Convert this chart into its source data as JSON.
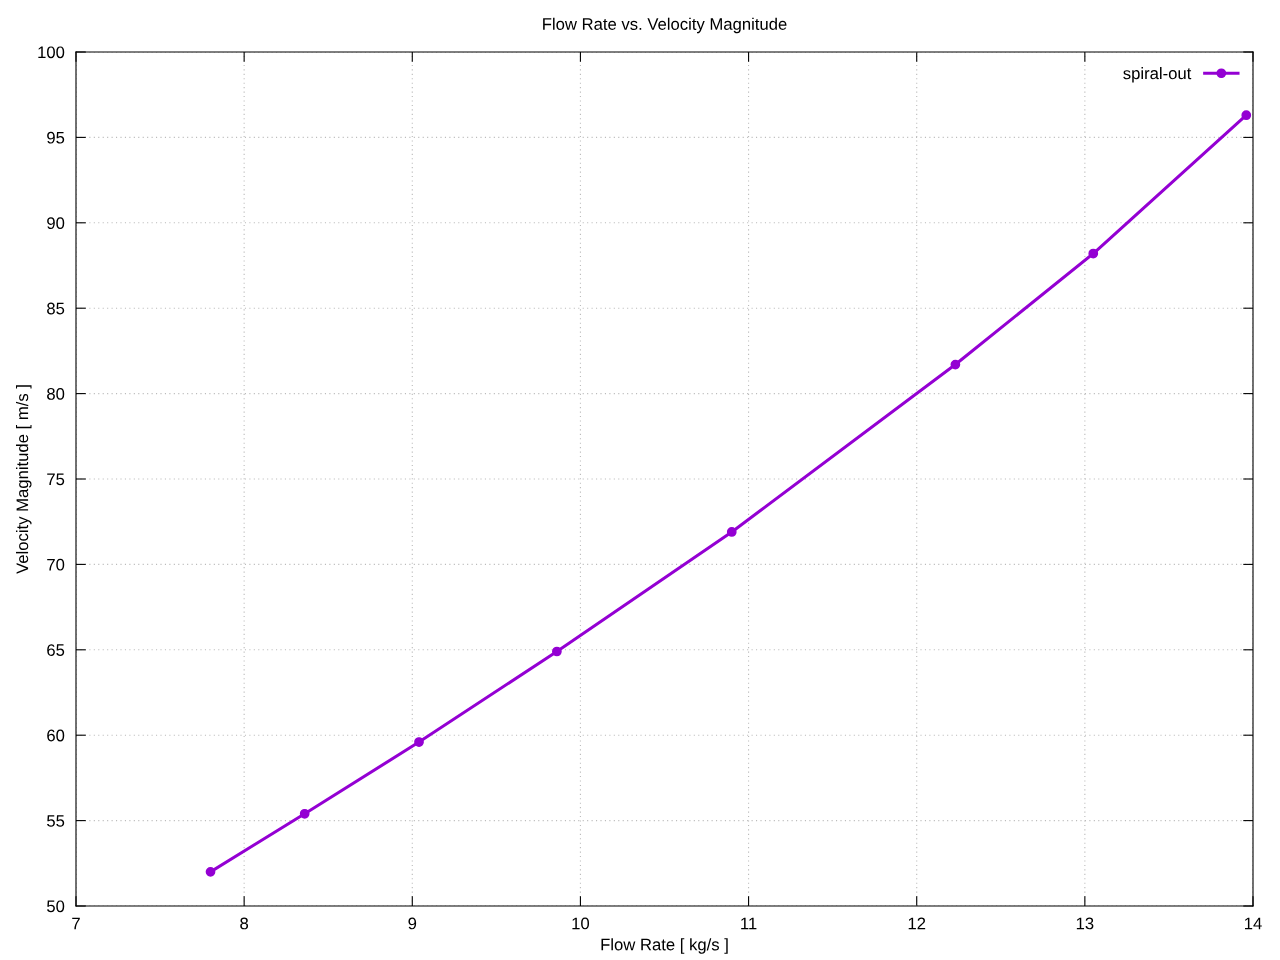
{
  "chart_data": {
    "type": "line",
    "title": "Flow Rate vs. Velocity Magnitude",
    "xlabel": "Flow Rate [ kg/s ]",
    "ylabel": "Velocity Magnitude [ m/s ]",
    "x": [
      7.8,
      8.36,
      9.04,
      9.86,
      10.9,
      12.23,
      13.05,
      13.96
    ],
    "series": [
      {
        "name": "spiral-out",
        "color": "#9400d3",
        "values": [
          52.0,
          55.4,
          59.6,
          64.9,
          71.9,
          81.7,
          88.2,
          96.3
        ]
      }
    ],
    "xlim": [
      7,
      14
    ],
    "xticks": [
      7,
      8,
      9,
      10,
      11,
      12,
      13,
      14
    ],
    "ylim": [
      50,
      100
    ],
    "yticks": [
      50,
      55,
      60,
      65,
      70,
      75,
      80,
      85,
      90,
      95,
      100
    ],
    "grid": true,
    "legend": "top right",
    "marker": "circle",
    "line_style": "solid"
  }
}
